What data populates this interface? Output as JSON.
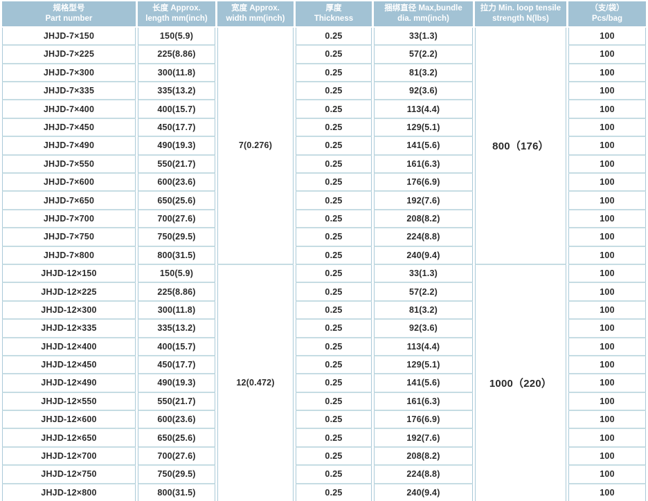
{
  "header": {
    "columns": [
      {
        "zh": "规格型号",
        "en": "Part number"
      },
      {
        "zh": "长度 Approx.",
        "en": "length mm(inch)"
      },
      {
        "zh": "宽度 Approx.",
        "en": "width mm(inch)"
      },
      {
        "zh": "厚度",
        "en": "Thickness"
      },
      {
        "zh": "捆绑直径 Max,bundle",
        "en": "dia. mm(inch)"
      },
      {
        "zh": "拉力 Min. loop tensile",
        "en": "strength N(lbs)"
      },
      {
        "zh": "（支/袋）",
        "en": "Pcs/bag"
      }
    ]
  },
  "chart_data": {
    "type": "table",
    "sections": [
      {
        "width": "7(0.276)",
        "tensile": "800（176）",
        "rows": [
          {
            "part": "JHJD-7×150",
            "length": "150(5.9)",
            "thickness": "0.25",
            "dia": "33(1.3)",
            "pcs": "100"
          },
          {
            "part": "JHJD-7×225",
            "length": "225(8.86)",
            "thickness": "0.25",
            "dia": "57(2.2)",
            "pcs": "100"
          },
          {
            "part": "JHJD-7×300",
            "length": "300(11.8)",
            "thickness": "0.25",
            "dia": "81(3.2)",
            "pcs": "100"
          },
          {
            "part": "JHJD-7×335",
            "length": "335(13.2)",
            "thickness": "0.25",
            "dia": "92(3.6)",
            "pcs": "100"
          },
          {
            "part": "JHJD-7×400",
            "length": "400(15.7)",
            "thickness": "0.25",
            "dia": "113(4.4)",
            "pcs": "100"
          },
          {
            "part": "JHJD-7×450",
            "length": "450(17.7)",
            "thickness": "0.25",
            "dia": "129(5.1)",
            "pcs": "100"
          },
          {
            "part": "JHJD-7×490",
            "length": "490(19.3)",
            "thickness": "0.25",
            "dia": "141(5.6)",
            "pcs": "100"
          },
          {
            "part": "JHJD-7×550",
            "length": "550(21.7)",
            "thickness": "0.25",
            "dia": "161(6.3)",
            "pcs": "100"
          },
          {
            "part": "JHJD-7×600",
            "length": "600(23.6)",
            "thickness": "0.25",
            "dia": "176(6.9)",
            "pcs": "100"
          },
          {
            "part": "JHJD-7×650",
            "length": "650(25.6)",
            "thickness": "0.25",
            "dia": "192(7.6)",
            "pcs": "100"
          },
          {
            "part": "JHJD-7×700",
            "length": "700(27.6)",
            "thickness": "0.25",
            "dia": "208(8.2)",
            "pcs": "100"
          },
          {
            "part": "JHJD-7×750",
            "length": "750(29.5)",
            "thickness": "0.25",
            "dia": "224(8.8)",
            "pcs": "100"
          },
          {
            "part": "JHJD-7×800",
            "length": "800(31.5)",
            "thickness": "0.25",
            "dia": "240(9.4)",
            "pcs": "100"
          }
        ]
      },
      {
        "width": "12(0.472)",
        "tensile": "1000（220）",
        "rows": [
          {
            "part": "JHJD-12×150",
            "length": "150(5.9)",
            "thickness": "0.25",
            "dia": "33(1.3)",
            "pcs": "100"
          },
          {
            "part": "JHJD-12×225",
            "length": "225(8.86)",
            "thickness": "0.25",
            "dia": "57(2.2)",
            "pcs": "100"
          },
          {
            "part": "JHJD-12×300",
            "length": "300(11.8)",
            "thickness": "0.25",
            "dia": "81(3.2)",
            "pcs": "100"
          },
          {
            "part": "JHJD-12×335",
            "length": "335(13.2)",
            "thickness": "0.25",
            "dia": "92(3.6)",
            "pcs": "100"
          },
          {
            "part": "JHJD-12×400",
            "length": "400(15.7)",
            "thickness": "0.25",
            "dia": "113(4.4)",
            "pcs": "100"
          },
          {
            "part": "JHJD-12×450",
            "length": "450(17.7)",
            "thickness": "0.25",
            "dia": "129(5.1)",
            "pcs": "100"
          },
          {
            "part": "JHJD-12×490",
            "length": "490(19.3)",
            "thickness": "0.25",
            "dia": "141(5.6)",
            "pcs": "100"
          },
          {
            "part": "JHJD-12×550",
            "length": "550(21.7)",
            "thickness": "0.25",
            "dia": "161(6.3)",
            "pcs": "100"
          },
          {
            "part": "JHJD-12×600",
            "length": "600(23.6)",
            "thickness": "0.25",
            "dia": "176(6.9)",
            "pcs": "100"
          },
          {
            "part": "JHJD-12×650",
            "length": "650(25.6)",
            "thickness": "0.25",
            "dia": "192(7.6)",
            "pcs": "100"
          },
          {
            "part": "JHJD-12×700",
            "length": "700(27.6)",
            "thickness": "0.25",
            "dia": "208(8.2)",
            "pcs": "100"
          },
          {
            "part": "JHJD-12×750",
            "length": "750(29.5)",
            "thickness": "0.25",
            "dia": "224(8.8)",
            "pcs": "100"
          },
          {
            "part": "JHJD-12×800",
            "length": "800(31.5)",
            "thickness": "0.25",
            "dia": "240(9.4)",
            "pcs": "100"
          }
        ]
      }
    ]
  },
  "colors": {
    "header_bg": "#a2c2d4",
    "header_text": "#ffffff",
    "row_line": "#c5dce3",
    "column_line": "#a9c9d8",
    "body_text": "#2a2a2a"
  }
}
